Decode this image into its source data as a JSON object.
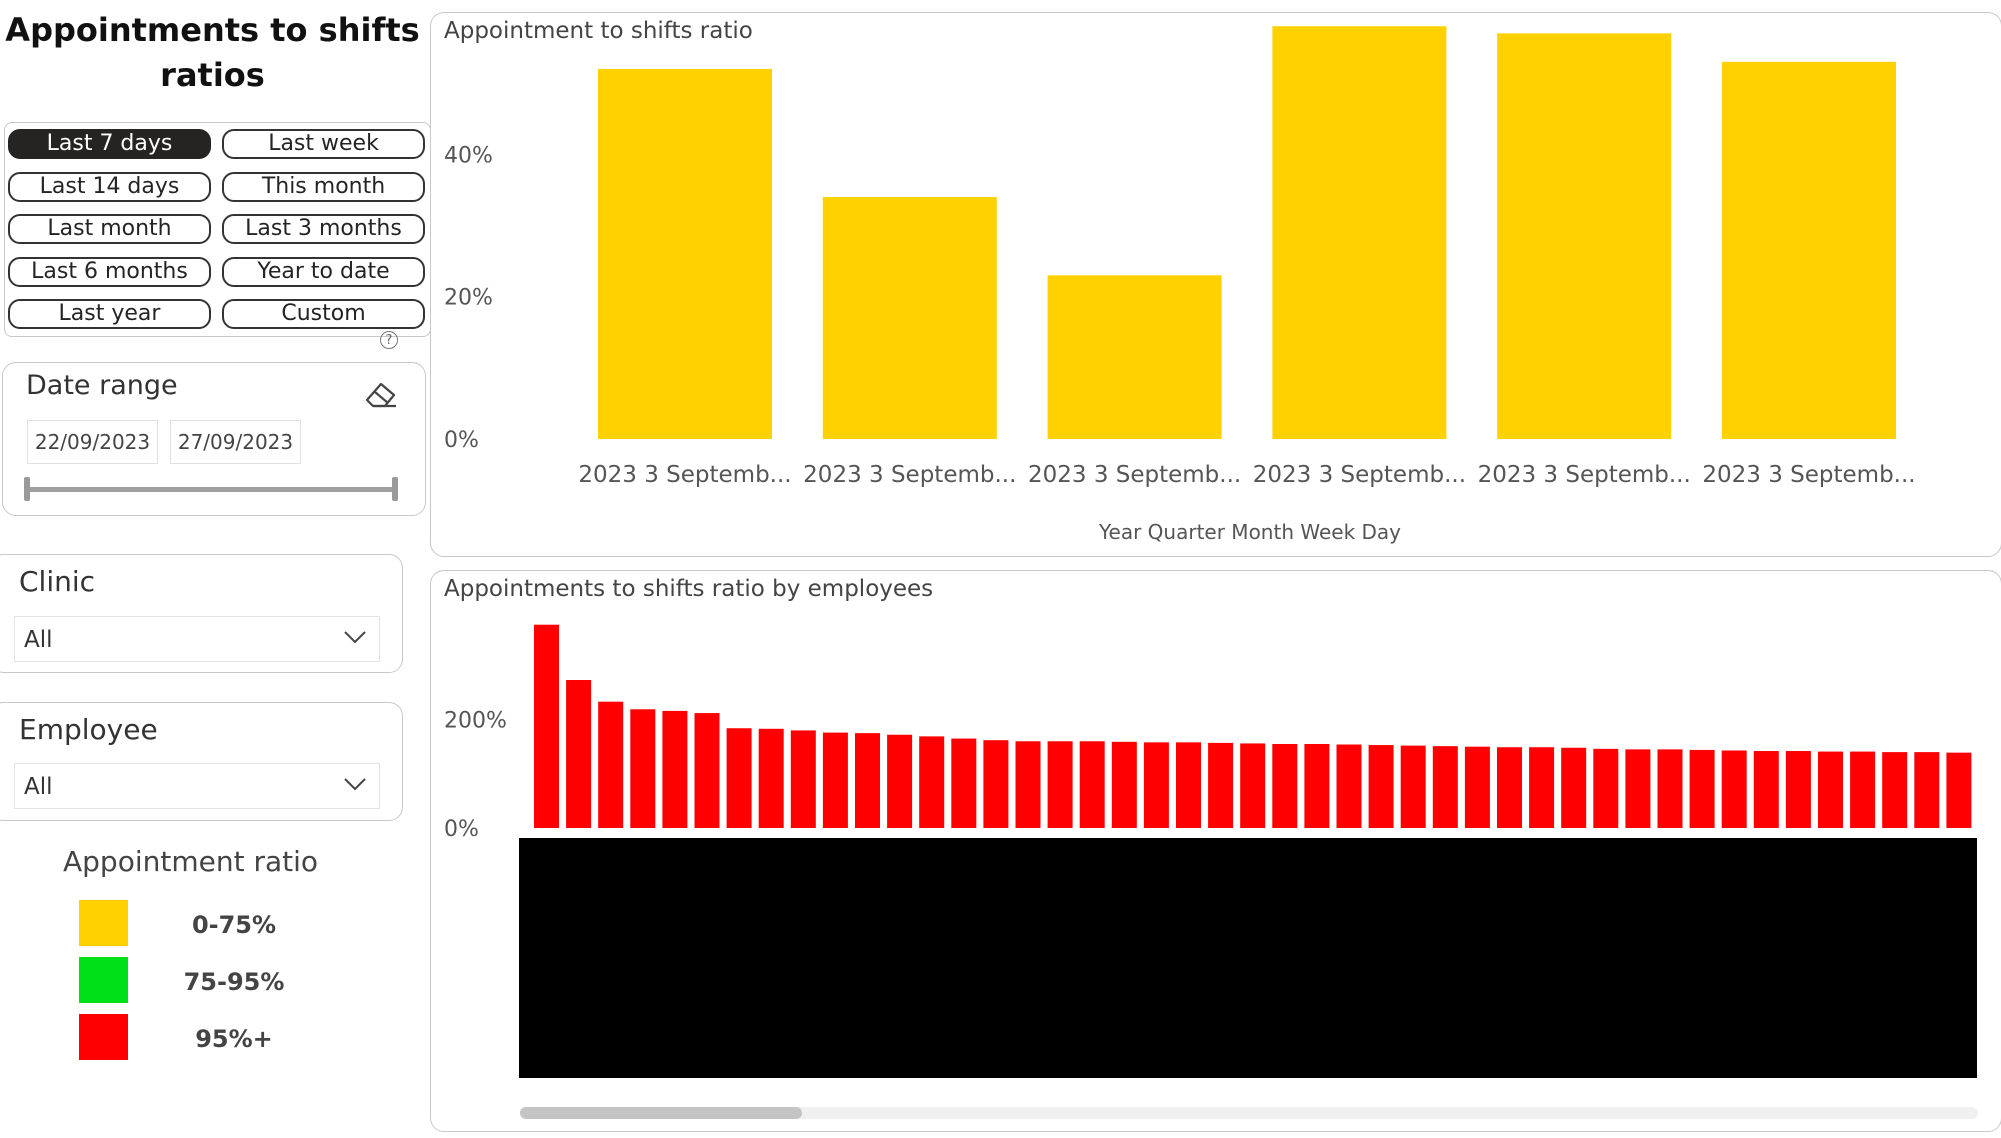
{
  "title": "Appointments to shifts ratios",
  "period_buttons": [
    {
      "label": "Last 7 days",
      "active": true
    },
    {
      "label": "Last week",
      "active": false
    },
    {
      "label": "Last 14 days",
      "active": false
    },
    {
      "label": "This month",
      "active": false
    },
    {
      "label": "Last month",
      "active": false
    },
    {
      "label": "Last 3 months",
      "active": false
    },
    {
      "label": "Last 6 months",
      "active": false
    },
    {
      "label": "Year to date",
      "active": false
    },
    {
      "label": "Last year",
      "active": false
    },
    {
      "label": "Custom",
      "active": false
    }
  ],
  "help_glyph": "?",
  "date_range": {
    "title": "Date range",
    "start": "22/09/2023",
    "end": "27/09/2023",
    "eraser_icon": "eraser-icon"
  },
  "clinic": {
    "title": "Clinic",
    "value": "All"
  },
  "employee": {
    "title": "Employee",
    "value": "All"
  },
  "legend": {
    "title": "Appointment ratio",
    "items": [
      {
        "label": "0-75%",
        "color": "#FFD100"
      },
      {
        "label": "75-95%",
        "color": "#00E016"
      },
      {
        "label": "95%+",
        "color": "#FF0000"
      }
    ]
  },
  "chart_data": [
    {
      "type": "bar",
      "title": "Appointment to shifts ratio",
      "xlabel": "Year Quarter Month Week Day",
      "ylabel": "",
      "categories": [
        "2023 3 Septemb...",
        "2023 3 Septemb...",
        "2023 3 Septemb...",
        "2023 3 Septemb...",
        "2023 3 Septemb...",
        "2023 3 Septemb..."
      ],
      "values": [
        52,
        34,
        23,
        58,
        57,
        53
      ],
      "yticks": [
        "0%",
        "20%",
        "40%"
      ],
      "ylim": [
        0,
        60
      ],
      "color": "#FFD100"
    },
    {
      "type": "bar",
      "title": "Appointments to shifts ratio by employees",
      "yticks": [
        "0%",
        "200%"
      ],
      "ylim": [
        0,
        380
      ],
      "values": [
        375,
        273,
        233,
        219,
        216,
        212,
        184,
        183,
        180,
        176,
        175,
        172,
        169,
        165,
        162,
        160,
        160,
        160,
        159,
        158,
        158,
        157,
        156,
        155,
        155,
        154,
        153,
        152,
        151,
        150,
        149,
        149,
        148,
        146,
        145,
        145,
        144,
        143,
        142,
        142,
        141,
        141,
        140,
        140,
        139
      ],
      "color": "#FF0000",
      "category_labels_redacted": true
    }
  ]
}
